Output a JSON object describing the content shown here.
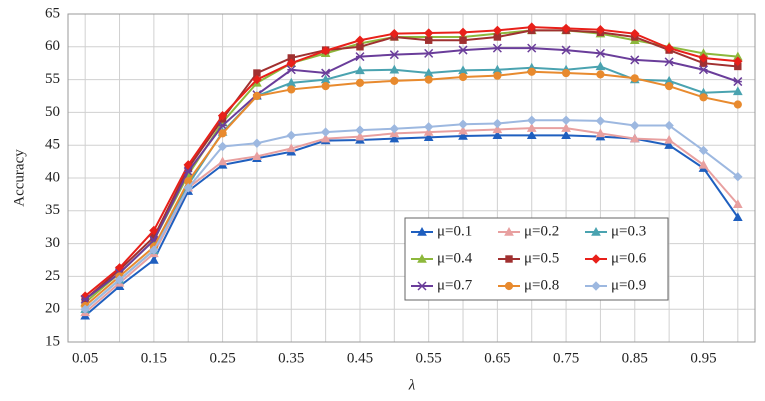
{
  "chart_data": {
    "type": "line",
    "y_label": "Accuracy",
    "x_label": "λ",
    "categories": [
      "0.05",
      null,
      "0.15",
      null,
      "0.25",
      null,
      "0.35",
      null,
      "0.45",
      null,
      "0.55",
      null,
      "0.65",
      null,
      "0.75",
      null,
      "0.85",
      null,
      "0.95",
      null
    ],
    "ylim": [
      15,
      65
    ],
    "yticks": [
      15,
      20,
      25,
      30,
      35,
      40,
      45,
      50,
      55,
      60,
      65
    ],
    "grid": true,
    "legend": "lower right",
    "series": [
      {
        "name": "μ=0.1",
        "color": "#1f5fbf",
        "marker": "triangle",
        "values": [
          19,
          23.5,
          27.5,
          38,
          42,
          43,
          44,
          45.7,
          45.8,
          46,
          46.2,
          46.4,
          46.5,
          46.5,
          46.5,
          46.3,
          46,
          45,
          41.5,
          34
        ]
      },
      {
        "name": "μ=0.2",
        "color": "#e8a0a0",
        "marker": "triangle",
        "values": [
          19.5,
          24,
          28.5,
          38.5,
          42.5,
          43.3,
          44.5,
          46,
          46.3,
          46.8,
          47,
          47.2,
          47.4,
          47.6,
          47.6,
          46.8,
          46,
          45.8,
          42,
          36
        ]
      },
      {
        "name": "μ=0.3",
        "color": "#4aa3b0",
        "marker": "triangle",
        "values": [
          20,
          24.5,
          29,
          39,
          47,
          52.5,
          54.5,
          55,
          56.4,
          56.5,
          56,
          56.4,
          56.5,
          56.8,
          56.5,
          57,
          55,
          54.8,
          53,
          53.2
        ]
      },
      {
        "name": "μ=0.4",
        "color": "#8db83c",
        "marker": "triangle",
        "values": [
          21,
          25.5,
          30.5,
          40.5,
          48.5,
          54.5,
          57.5,
          59,
          60.5,
          61.5,
          61.5,
          61.5,
          62,
          62.5,
          62.5,
          62,
          61,
          60,
          59,
          58.5
        ]
      },
      {
        "name": "μ=0.5",
        "color": "#a03030",
        "marker": "square",
        "values": [
          21.5,
          26,
          31,
          41.5,
          49,
          56,
          58.3,
          59.5,
          60,
          61.5,
          61,
          61,
          61.5,
          62.5,
          62.5,
          62.2,
          61.5,
          59.5,
          57.5,
          57
        ]
      },
      {
        "name": "μ=0.6",
        "color": "#e8201a",
        "marker": "diamond",
        "values": [
          22,
          26.3,
          32,
          42,
          49.5,
          55,
          57.5,
          59.4,
          61,
          62,
          62.1,
          62.2,
          62.5,
          63,
          62.8,
          62.6,
          62,
          59.8,
          58.3,
          57.8
        ]
      },
      {
        "name": "μ=0.7",
        "color": "#6a3d9a",
        "marker": "x",
        "values": [
          21.5,
          25.5,
          30.5,
          41,
          48,
          52.7,
          56.5,
          56,
          58.5,
          58.8,
          59,
          59.5,
          59.8,
          59.8,
          59.5,
          59,
          58,
          57.7,
          56.5,
          54.7
        ]
      },
      {
        "name": "μ=0.8",
        "color": "#e88a2e",
        "marker": "circle",
        "values": [
          20.5,
          25,
          29.5,
          39.5,
          46.8,
          52.5,
          53.5,
          54,
          54.5,
          54.8,
          55,
          55.4,
          55.6,
          56.2,
          56,
          55.8,
          55.2,
          54,
          52.3,
          51.2
        ]
      },
      {
        "name": "μ=0.9",
        "color": "#9db8e0",
        "marker": "diamond",
        "values": [
          20,
          24.5,
          29,
          38.5,
          44.8,
          45.3,
          46.5,
          47,
          47.3,
          47.5,
          47.8,
          48.2,
          48.3,
          48.8,
          48.8,
          48.7,
          48,
          48,
          44.2,
          40.2
        ]
      }
    ]
  }
}
